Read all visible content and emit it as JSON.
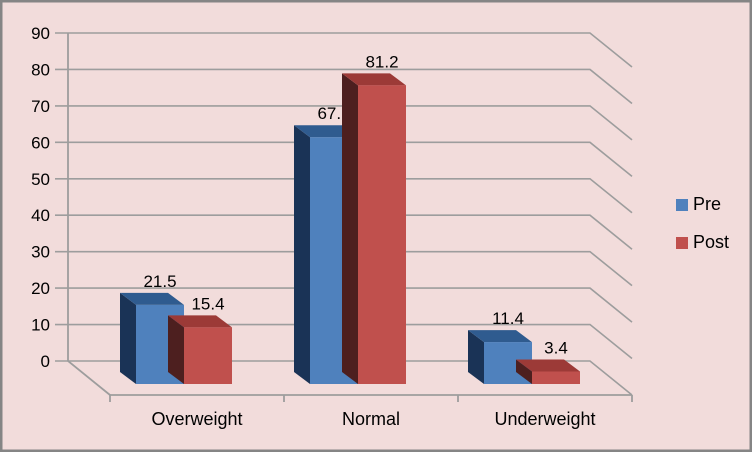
{
  "figure": {
    "background_color": "#F2DCDB",
    "border_color": "#858585",
    "text_color": "#000000"
  },
  "chart_data": {
    "type": "bar",
    "subtype": "3d-clustered-column",
    "title": "",
    "xlabel": "",
    "ylabel": "",
    "categories": [
      "Overweight",
      "Normal",
      "Underweight"
    ],
    "series": [
      {
        "name": "Pre",
        "color": "#4F81BD",
        "top_color": "#2F5B8F",
        "side_color": "#1A3356",
        "values": [
          21.5,
          67.1,
          11.4
        ]
      },
      {
        "name": "Post",
        "color": "#C0504D",
        "top_color": "#9C3A37",
        "side_color": "#4D1F1F",
        "values": [
          15.4,
          81.2,
          3.4
        ]
      }
    ],
    "data_labels_shown": true,
    "y_axis": {
      "min": 0,
      "max": 90,
      "step": 10,
      "tick_labels": [
        "0",
        "10",
        "20",
        "30",
        "40",
        "50",
        "60",
        "70",
        "80",
        "90"
      ]
    },
    "grid": true,
    "gridline_color": "#9D9D9D",
    "legend": {
      "position": "right",
      "entries": [
        "Pre",
        "Post"
      ]
    }
  }
}
